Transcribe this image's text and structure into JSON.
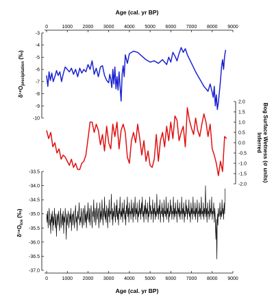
{
  "chart_data": {
    "type": "line",
    "top_xlabel": "Age (cal. yr BP)",
    "bottom_xlabel": "Age (cal. yr BP)",
    "xlim": [
      -100,
      9000
    ],
    "xticks": [
      0,
      1000,
      2000,
      3000,
      4000,
      5000,
      6000,
      7000,
      8000,
      9000
    ],
    "panels": [
      {
        "id": "precip",
        "ylabel_main": "δ¹⁸O",
        "ylabel_sub": "precipitation",
        "ylabel_unit": " (‰)",
        "ylim": [
          -10,
          -3
        ],
        "yticks": [
          -10,
          -9,
          -8,
          -7,
          -6,
          -5,
          -4,
          -3
        ],
        "axis_side": "left",
        "color": "#1a22d0",
        "series": {
          "x": [
            0,
            60,
            120,
            180,
            250,
            320,
            400,
            480,
            560,
            640,
            720,
            800,
            900,
            1000,
            1100,
            1200,
            1300,
            1400,
            1500,
            1600,
            1700,
            1800,
            1900,
            2000,
            2100,
            2200,
            2300,
            2400,
            2500,
            2600,
            2700,
            2800,
            2900,
            3000,
            3050,
            3100,
            3150,
            3200,
            3250,
            3300,
            3350,
            3400,
            3450,
            3500,
            3550,
            3600,
            3650,
            3700,
            3750,
            3800,
            3900,
            4000,
            4200,
            4400,
            4600,
            4800,
            5000,
            5200,
            5400,
            5600,
            5800,
            5900,
            6000,
            6100,
            6200,
            6300,
            6400,
            6500,
            6600,
            6700,
            6800,
            7000,
            7200,
            7400,
            7600,
            7800,
            7900,
            8000,
            8050,
            8100,
            8150,
            8200,
            8250,
            8300,
            8350,
            8400,
            8450,
            8500,
            8550,
            8600,
            8650
          ],
          "values": [
            -6.5,
            -7.4,
            -6.2,
            -6.9,
            -6.3,
            -7.0,
            -6.6,
            -6.1,
            -6.5,
            -6.2,
            -7.0,
            -6.4,
            -5.8,
            -6.0,
            -6.2,
            -5.9,
            -6.4,
            -6.0,
            -6.6,
            -5.9,
            -6.3,
            -6.0,
            -6.2,
            -5.6,
            -6.0,
            -5.3,
            -6.4,
            -5.9,
            -6.6,
            -5.8,
            -5.7,
            -6.5,
            -6.9,
            -7.1,
            -6.4,
            -6.8,
            -7.5,
            -6.0,
            -7.2,
            -5.8,
            -7.6,
            -6.6,
            -7.7,
            -6.2,
            -7.4,
            -8.6,
            -6.4,
            -5.7,
            -6.6,
            -4.8,
            -5.5,
            -4.7,
            -4.5,
            -4.6,
            -4.9,
            -5.2,
            -5.4,
            -5.3,
            -5.5,
            -5.2,
            -5.6,
            -5.0,
            -5.4,
            -4.6,
            -4.9,
            -5.3,
            -4.7,
            -4.2,
            -4.6,
            -4.3,
            -4.8,
            -5.5,
            -6.2,
            -6.8,
            -7.4,
            -7.8,
            -7.2,
            -7.9,
            -8.3,
            -7.4,
            -9.0,
            -8.1,
            -9.3,
            -8.7,
            -7.8,
            -6.9,
            -5.8,
            -5.2,
            -6.0,
            -4.9,
            -4.4
          ]
        }
      },
      {
        "id": "bog",
        "ylabel_main": "Inferred",
        "ylabel_second": "Bog Surface Wetness (σ units)",
        "ylim": [
          -2.0,
          2.0
        ],
        "yticks": [
          -2.0,
          -1.5,
          -1.0,
          -0.5,
          0.0,
          0.5,
          1.0,
          1.5,
          2.0
        ],
        "ytick_labels": [
          "-2.0",
          "-1.5",
          "-1.0",
          "-0.5",
          "0.0",
          "0.5",
          "1.0",
          "1.5",
          "2.0"
        ],
        "axis_side": "right",
        "color": "#e01010",
        "series": {
          "x": [
            0,
            100,
            200,
            300,
            400,
            500,
            600,
            700,
            800,
            900,
            1000,
            1100,
            1200,
            1300,
            1400,
            1500,
            1600,
            1700,
            1800,
            1900,
            2000,
            2100,
            2200,
            2300,
            2400,
            2500,
            2600,
            2700,
            2800,
            2900,
            3000,
            3100,
            3200,
            3300,
            3400,
            3500,
            3600,
            3700,
            3800,
            3900,
            4000,
            4100,
            4200,
            4300,
            4400,
            4500,
            4600,
            4700,
            4800,
            4900,
            5000,
            5100,
            5200,
            5300,
            5400,
            5500,
            5600,
            5700,
            5800,
            5900,
            6000,
            6100,
            6200,
            6300,
            6400,
            6500,
            6600,
            6700,
            6800,
            6900,
            7000,
            7100,
            7200,
            7300,
            7400,
            7500,
            7600,
            7700,
            7800,
            7900,
            8000,
            8100,
            8200,
            8300,
            8400,
            8500,
            8600,
            8700
          ],
          "values": [
            0.6,
            0.2,
            0.5,
            -0.2,
            0.0,
            -0.5,
            -0.3,
            -0.8,
            -0.6,
            -0.7,
            -0.9,
            -1.1,
            -0.8,
            -1.2,
            -1.0,
            -1.3,
            -1.3,
            -1.0,
            -0.9,
            -0.6,
            0.2,
            1.0,
            1.0,
            0.5,
            0.9,
            0.6,
            -0.1,
            0.4,
            -0.4,
            0.8,
            0.0,
            -0.3,
            0.9,
            0.3,
            1.0,
            -0.3,
            0.6,
            0.9,
            0.5,
            -0.7,
            -1.0,
            0.1,
            0.5,
            0.0,
            0.9,
            0.2,
            -0.6,
            0.1,
            -0.9,
            -0.4,
            -1.1,
            -1.2,
            -0.8,
            0.4,
            -0.9,
            0.1,
            0.5,
            -0.2,
            0.8,
            0.1,
            1.0,
            0.2,
            1.3,
            1.1,
            0.1,
            0.5,
            0.8,
            -0.2,
            1.7,
            1.1,
            0.7,
            0.4,
            1.2,
            0.6,
            0.3,
            0.9,
            1.4,
            1.0,
            0.3,
            0.9,
            -0.3,
            -0.6,
            -1.0,
            -1.6,
            -0.9,
            -1.4,
            0.3,
            0.2
          ]
        }
      },
      {
        "id": "ice",
        "ylabel_main": "δ¹⁸O",
        "ylabel_sub": "ice",
        "ylabel_unit": " (‰)",
        "ylim": [
          -37.0,
          -33.5
        ],
        "yticks": [
          -37.0,
          -36.5,
          -36.0,
          -35.5,
          -35.0,
          -34.5,
          -34.0,
          -33.5
        ],
        "ytick_labels": [
          "-37.0",
          "-36.5",
          "-36.0",
          "-35.5",
          "-35.0",
          "-34.5",
          "-34.0",
          "-33.5"
        ],
        "axis_side": "left",
        "color": "#000000",
        "series": {
          "x_start": 0,
          "x_step": 25,
          "values": [
            -35.0,
            -35.3,
            -34.9,
            -35.5,
            -35.1,
            -34.8,
            -35.4,
            -35.2,
            -35.7,
            -35.0,
            -35.3,
            -34.9,
            -35.6,
            -35.1,
            -35.4,
            -34.8,
            -35.2,
            -35.5,
            -35.0,
            -35.8,
            -35.2,
            -35.0,
            -35.4,
            -34.9,
            -35.3,
            -35.6,
            -35.1,
            -34.8,
            -35.5,
            -35.2,
            -35.0,
            -35.4,
            -34.9,
            -35.7,
            -35.1,
            -35.3,
            -34.8,
            -35.2,
            -35.9,
            -35.0,
            -35.4,
            -35.1,
            -34.9,
            -35.5,
            -35.2,
            -35.0,
            -35.3,
            -34.8,
            -35.6,
            -35.1,
            -35.0,
            -35.4,
            -34.9,
            -35.2,
            -35.5,
            -35.0,
            -34.7,
            -35.3,
            -35.1,
            -35.6,
            -34.9,
            -35.2,
            -35.0,
            -34.6,
            -35.4,
            -35.1,
            -35.3,
            -34.8,
            -35.2,
            -35.5,
            -35.0,
            -34.8,
            -35.4,
            -35.1,
            -34.7,
            -35.3,
            -35.0,
            -35.5,
            -34.9,
            -35.2,
            -34.6,
            -35.1,
            -35.3,
            -34.8,
            -35.4,
            -35.0,
            -34.7,
            -35.2,
            -35.5,
            -34.9,
            -35.1,
            -34.5,
            -35.3,
            -35.0,
            -34.8,
            -35.4,
            -35.1,
            -34.6,
            -35.2,
            -35.0,
            -34.8,
            -35.5,
            -35.0,
            -34.6,
            -35.3,
            -34.9,
            -35.2,
            -34.5,
            -35.0,
            -35.4,
            -34.8,
            -35.1,
            -34.4,
            -35.2,
            -34.9,
            -35.3,
            -34.7,
            -35.0,
            -35.5,
            -34.8,
            -35.1,
            -34.5,
            -35.3,
            -34.9,
            -35.0,
            -34.3,
            -35.2,
            -34.8,
            -35.4,
            -34.9,
            -35.1,
            -34.6,
            -35.0,
            -35.3,
            -34.7,
            -35.1,
            -34.5,
            -35.2,
            -34.9,
            -35.4,
            -34.8,
            -35.0,
            -34.4,
            -35.2,
            -34.9,
            -35.1,
            -34.6,
            -35.3,
            -34.8,
            -35.0,
            -34.5,
            -35.2,
            -34.9,
            -35.4,
            -34.7,
            -35.0,
            -34.4,
            -35.1,
            -34.8,
            -35.3,
            -34.6,
            -35.0,
            -34.9,
            -35.2,
            -34.5,
            -35.0,
            -34.8,
            -35.3,
            -34.6,
            -35.1,
            -34.9,
            -34.4,
            -35.2,
            -34.8,
            -35.0,
            -34.6,
            -35.3,
            -34.9,
            -35.1,
            -34.5,
            -35.0,
            -34.8,
            -35.2,
            -34.6,
            -35.0,
            -34.4,
            -35.1,
            -34.9,
            -35.3,
            -34.7,
            -35.0,
            -34.5,
            -35.2,
            -34.8,
            -35.0,
            -34.6,
            -35.3,
            -34.9,
            -35.1,
            -34.4,
            -35.0,
            -34.7,
            -35.2,
            -34.9,
            -35.0,
            -34.5,
            -35.3,
            -34.8,
            -35.0,
            -34.6,
            -35.2,
            -34.9,
            -35.1,
            -34.3,
            -35.0,
            -34.8,
            -35.2,
            -34.7,
            -35.0,
            -34.5,
            -35.3,
            -34.9,
            -35.0,
            -34.6,
            -35.1,
            -34.8,
            -35.3,
            -34.5,
            -35.0,
            -34.9,
            -35.1,
            -34.4,
            -35.2,
            -34.8,
            -35.0,
            -34.6,
            -35.3,
            -34.9,
            -35.1,
            -34.5,
            -35.0,
            -34.7,
            -35.2,
            -34.9,
            -35.0,
            -34.4,
            -35.2,
            -34.8,
            -35.1,
            -34.6,
            -35.0,
            -34.9,
            -35.3,
            -34.5,
            -35.0,
            -34.8,
            -35.1,
            -34.6,
            -35.2,
            -34.9,
            -35.0,
            -34.4,
            -35.2,
            -34.8,
            -35.0,
            -34.6,
            -35.3,
            -34.9,
            -35.1,
            -34.5,
            -35.0,
            -34.7,
            -35.2,
            -34.8,
            -35.0,
            -34.5,
            -35.1,
            -34.9,
            -35.3,
            -34.6,
            -35.0,
            -34.8,
            -35.2,
            -34.4,
            -35.0,
            -34.9,
            -35.1,
            -34.6,
            -35.2,
            -34.8,
            -35.0,
            -34.5,
            -35.3,
            -34.9,
            -35.0,
            -34.6,
            -35.1,
            -34.8,
            -35.2,
            -34.4,
            -35.0,
            -34.9,
            -35.1,
            -34.6,
            -35.2,
            -34.8,
            -35.0,
            -34.0,
            -35.1,
            -34.8,
            -35.3,
            -34.6,
            -35.0,
            -34.9,
            -35.2,
            -34.5,
            -35.1,
            -34.8,
            -35.0,
            -34.4,
            -35.2,
            -34.9,
            -35.0,
            -34.6,
            -35.3,
            -34.8,
            -35.1,
            -35.9,
            -35.2,
            -36.6,
            -35.0,
            -35.4,
            -34.8,
            -35.1,
            -35.0,
            -34.6,
            -35.2,
            -34.9,
            -35.1,
            -34.5,
            -35.0,
            -34.8,
            -35.2,
            -34.6,
            -35.0,
            -34.1
          ]
        }
      }
    ]
  }
}
